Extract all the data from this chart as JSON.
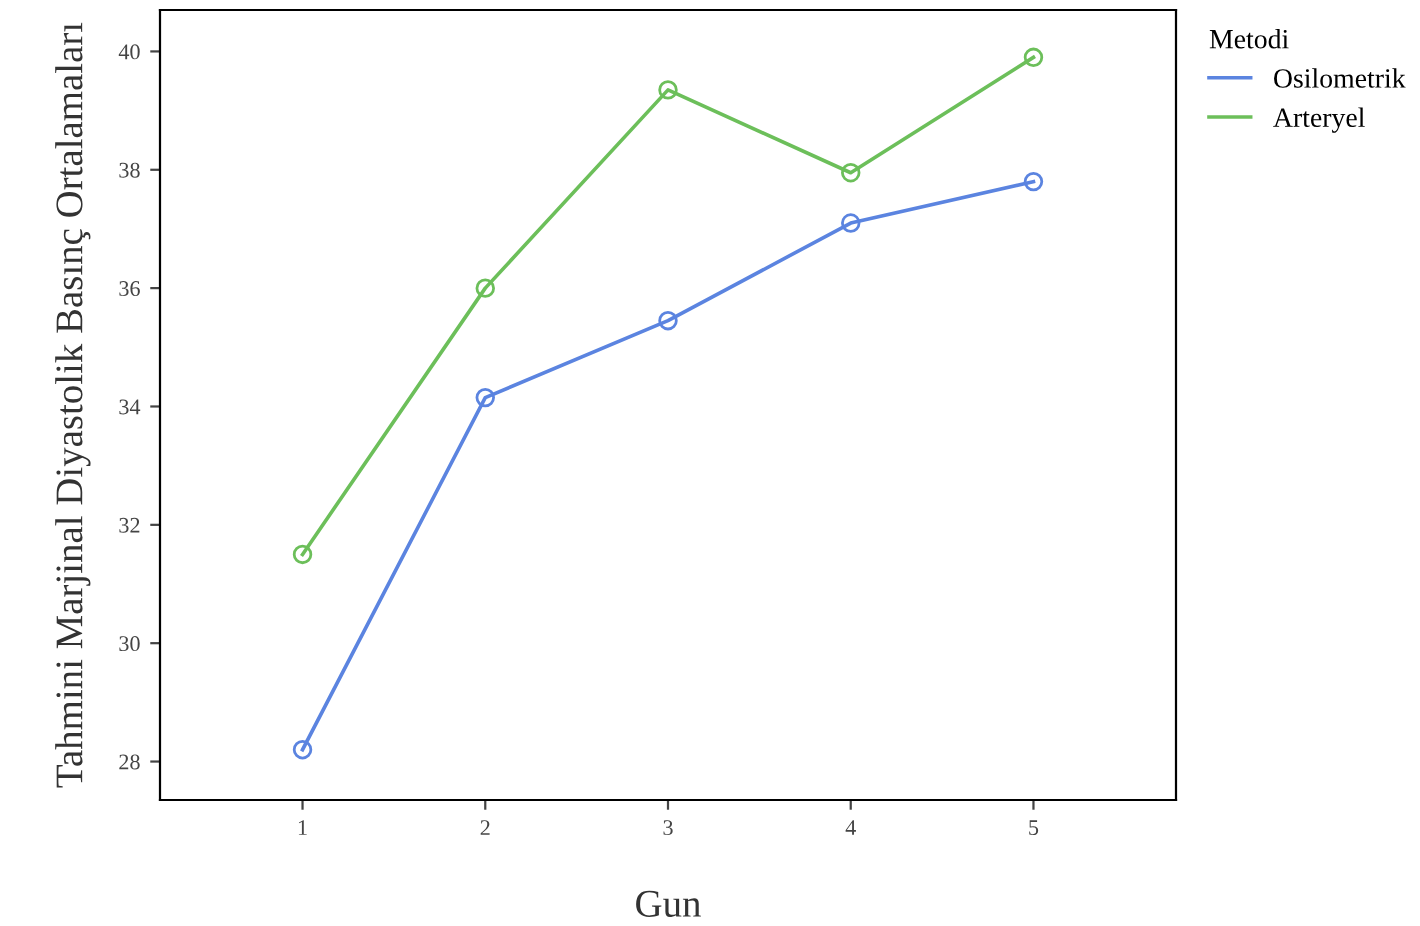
{
  "chart_data": {
    "type": "line",
    "xlabel": "Gun",
    "ylabel": "Tahmini Marjinal Diyastolik Basınç Ortalamaları",
    "legend_title": "Metodi",
    "categories": [
      "1",
      "2",
      "3",
      "4",
      "5"
    ],
    "series": [
      {
        "name": "Osilometrik",
        "color": "#5b84e0",
        "values": [
          28.2,
          34.15,
          35.45,
          37.1,
          37.8
        ]
      },
      {
        "name": "Arteryel",
        "color": "#6cbf5a",
        "values": [
          31.5,
          36.0,
          39.35,
          37.95,
          39.9
        ]
      }
    ],
    "ylim": [
      27.35,
      40.7
    ],
    "yticks": [
      28,
      30,
      32,
      34,
      36,
      38,
      40
    ],
    "grid": false,
    "legend": "top right",
    "marker": "circle",
    "line_style": "solid"
  }
}
